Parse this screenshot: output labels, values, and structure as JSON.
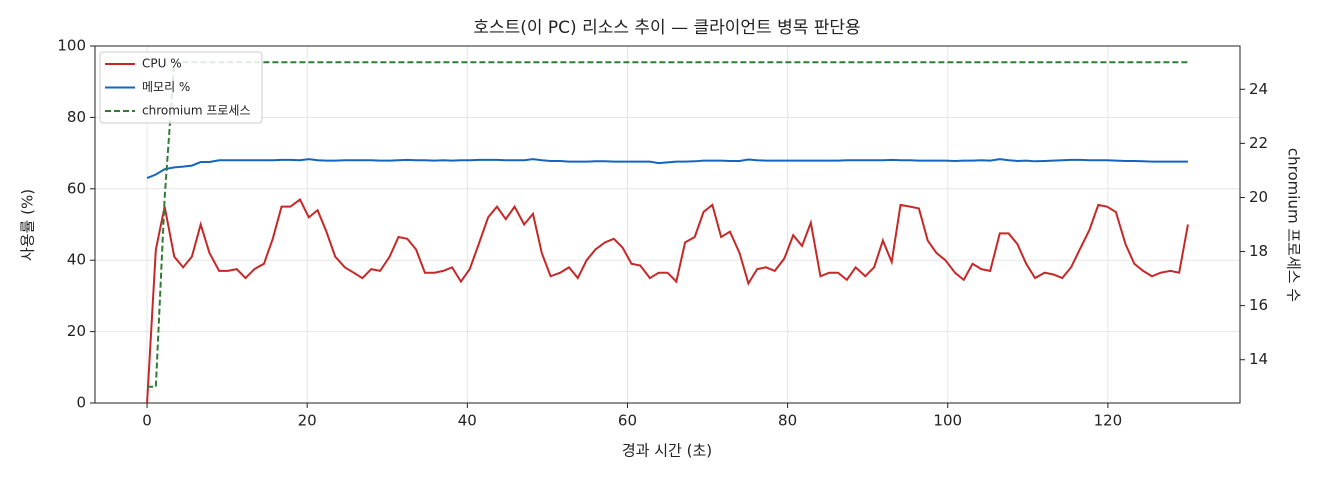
{
  "chart_data": {
    "type": "line",
    "title": "호스트(이 PC) 리소스 추이 — 클라이언트 병목 판단용",
    "xlabel": "경과 시간 (초)",
    "ylabel": "사용률 (%)",
    "y2label": "chromium 프로세스 수",
    "x": [
      0,
      1.1,
      2.2,
      3.4,
      4.5,
      5.6,
      6.7,
      7.8,
      9.0,
      10.1,
      11.2,
      12.3,
      13.4,
      14.6,
      15.7,
      16.8,
      17.9,
      19.1,
      20.2,
      21.3,
      22.4,
      23.5,
      24.7,
      25.8,
      26.9,
      28.0,
      29.1,
      30.3,
      31.4,
      32.5,
      33.6,
      34.7,
      35.9,
      37.0,
      38.1,
      39.2,
      40.3,
      41.5,
      42.6,
      43.7,
      44.8,
      45.9,
      47.1,
      48.2,
      49.3,
      50.4,
      51.6,
      52.7,
      53.8,
      54.9,
      56.0,
      57.2,
      58.3,
      59.4,
      60.5,
      61.6,
      62.8,
      63.9,
      65.0,
      66.1,
      67.2,
      68.4,
      69.5,
      70.6,
      71.7,
      72.8,
      74.0,
      75.1,
      76.2,
      77.3,
      78.4,
      79.6,
      80.7,
      81.8,
      82.9,
      84.1,
      85.2,
      86.3,
      87.4,
      88.5,
      89.7,
      90.8,
      91.9,
      93.0,
      94.1,
      95.3,
      96.4,
      97.5,
      98.6,
      99.7,
      100.9,
      102.0,
      103.1,
      104.2,
      105.3,
      106.5,
      107.6,
      108.7,
      109.8,
      110.9,
      112.1,
      113.2,
      114.3,
      115.4,
      116.6,
      117.7,
      118.8,
      119.9,
      121.0,
      122.2,
      123.3,
      124.4,
      125.5,
      126.6,
      127.8,
      128.9,
      130.0
    ],
    "series": [
      {
        "name": "CPU %",
        "color": "#c62828",
        "linestyle": "solid",
        "axis": "y",
        "values": [
          0,
          43,
          55,
          41,
          38,
          41,
          50,
          42,
          37,
          37,
          37.5,
          35,
          37.5,
          39,
          46,
          55,
          55,
          57,
          52,
          54,
          48,
          41,
          38,
          36.5,
          35,
          37.5,
          37,
          41,
          46.5,
          46,
          43,
          36.5,
          36.5,
          37,
          38,
          34,
          37.5,
          45,
          52,
          55,
          51.5,
          55,
          50,
          53,
          42,
          35.5,
          36.5,
          38,
          35,
          40,
          43,
          45,
          46,
          43.5,
          39,
          38.5,
          35,
          36.5,
          36.5,
          34,
          45,
          46.5,
          53.5,
          55.5,
          46.5,
          48,
          42,
          33.5,
          37.5,
          38,
          37,
          40.5,
          47,
          44,
          50.5,
          35.5,
          36.5,
          36.5,
          34.5,
          38,
          35.5,
          38,
          45.5,
          39.5,
          55.5,
          55,
          54.5,
          45.5,
          42,
          40,
          36.5,
          34.5,
          39,
          37.5,
          37,
          47.5,
          47.5,
          44.5,
          39,
          35,
          36.5,
          36,
          35,
          38,
          43.5,
          48.5,
          55.5,
          55,
          53.5,
          44.5,
          39,
          37,
          35.5,
          36.5,
          37,
          36.5,
          50
        ]
      },
      {
        "name": "메모리 %",
        "color": "#1565c0",
        "linestyle": "solid",
        "axis": "y",
        "values": [
          63,
          64,
          65.5,
          66,
          66.2,
          66.5,
          67.5,
          67.5,
          68,
          68,
          68,
          68,
          68,
          68,
          68,
          68.1,
          68.1,
          68,
          68.3,
          68,
          67.9,
          67.9,
          68,
          68,
          68,
          68,
          67.9,
          67.9,
          68,
          68.1,
          68,
          68,
          67.9,
          68,
          67.9,
          68,
          68,
          68.1,
          68.1,
          68.1,
          68,
          68,
          68,
          68.3,
          68,
          67.8,
          67.8,
          67.6,
          67.6,
          67.6,
          67.7,
          67.7,
          67.6,
          67.6,
          67.6,
          67.6,
          67.6,
          67.2,
          67.4,
          67.6,
          67.6,
          67.7,
          67.9,
          67.9,
          67.9,
          67.8,
          67.8,
          68.2,
          68,
          67.9,
          67.9,
          67.9,
          67.9,
          67.9,
          67.9,
          67.9,
          67.9,
          67.9,
          68,
          68,
          68,
          68,
          68,
          68.1,
          68,
          68,
          67.9,
          67.9,
          67.9,
          67.9,
          67.8,
          67.9,
          67.9,
          68,
          67.9,
          68.3,
          68,
          67.8,
          67.9,
          67.7,
          67.8,
          67.9,
          68,
          68.1,
          68.1,
          68,
          68,
          68,
          67.9,
          67.8,
          67.8,
          67.7,
          67.6,
          67.6,
          67.6,
          67.6,
          67.6
        ]
      },
      {
        "name": "chromium 프로세스",
        "color": "#2e7d32",
        "linestyle": "dashed",
        "axis": "y2",
        "values": [
          13,
          13,
          20,
          25,
          25,
          25,
          25,
          25,
          25,
          25,
          25,
          25,
          25,
          25,
          25,
          25,
          25,
          25,
          25,
          25,
          25,
          25,
          25,
          25,
          25,
          25,
          25,
          25,
          25,
          25,
          25,
          25,
          25,
          25,
          25,
          25,
          25,
          25,
          25,
          25,
          25,
          25,
          25,
          25,
          25,
          25,
          25,
          25,
          25,
          25,
          25,
          25,
          25,
          25,
          25,
          25,
          25,
          25,
          25,
          25,
          25,
          25,
          25,
          25,
          25,
          25,
          25,
          25,
          25,
          25,
          25,
          25,
          25,
          25,
          25,
          25,
          25,
          25,
          25,
          25,
          25,
          25,
          25,
          25,
          25,
          25,
          25,
          25,
          25,
          25,
          25,
          25,
          25,
          25,
          25,
          25,
          25,
          25,
          25,
          25,
          25,
          25,
          25,
          25,
          25,
          25,
          25,
          25,
          25,
          25,
          25,
          25,
          25,
          25,
          25,
          25,
          25
        ]
      }
    ],
    "xlim": [
      -6.5,
      136.5
    ],
    "xticks": [
      0,
      20,
      40,
      60,
      80,
      100,
      120
    ],
    "ylim": [
      0,
      100
    ],
    "yticks": [
      0,
      20,
      40,
      60,
      80,
      100
    ],
    "y2lim": [
      12.4,
      25.6
    ],
    "y2ticks": [
      14,
      16,
      18,
      20,
      22,
      24
    ],
    "grid": true,
    "legend": "upper-left"
  }
}
